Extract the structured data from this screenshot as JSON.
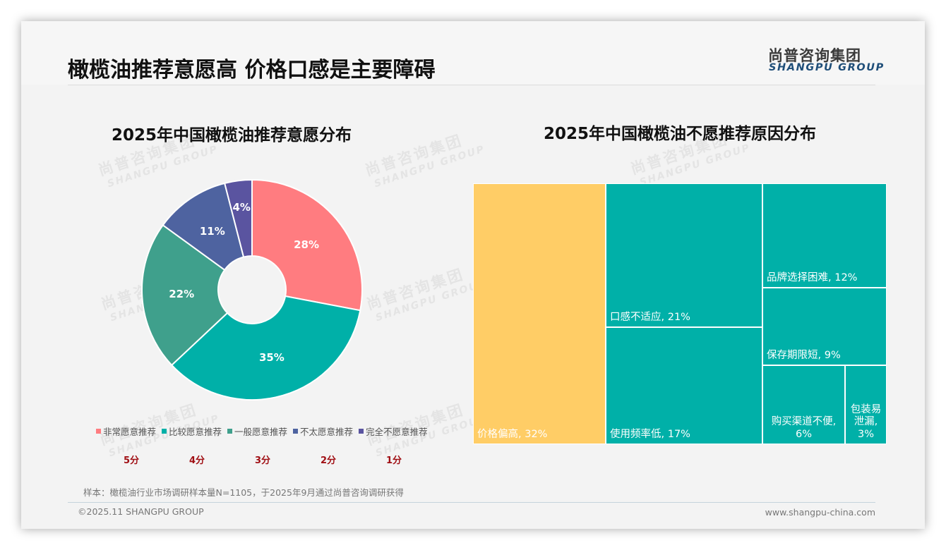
{
  "header": {
    "title": "橄榄油推荐意愿高 价格口感是主要障碍",
    "logo_cn": "尚普咨询集团",
    "logo_en": "SHANGPU GROUP"
  },
  "watermark": {
    "cn": "尚普咨询集团",
    "en": "SHANGPU GROUP"
  },
  "left_chart": {
    "title": "2025年中国橄榄油推荐意愿分布",
    "legend": [
      {
        "label": "非常愿意推荐",
        "color": "#ff7c80",
        "score": "5分"
      },
      {
        "label": "比较愿意推荐",
        "color": "#00b0a8",
        "score": "4分"
      },
      {
        "label": "一般愿意推荐",
        "color": "#3fa08c",
        "score": "3分"
      },
      {
        "label": "不太愿意推荐",
        "color": "#4e63a0",
        "score": "2分"
      },
      {
        "label": "完全不愿意推荐",
        "color": "#5a54a0",
        "score": "1分"
      }
    ]
  },
  "right_chart": {
    "title": "2025年中国橄榄油不愿推荐原因分布"
  },
  "chart_data": [
    {
      "type": "pie",
      "title": "2025年中国橄榄油推荐意愿分布",
      "donut": true,
      "categories": [
        "非常愿意推荐",
        "比较愿意推荐",
        "一般愿意推荐",
        "不太愿意推荐",
        "完全不愿意推荐"
      ],
      "scores": [
        "5分",
        "4分",
        "3分",
        "2分",
        "1分"
      ],
      "values": [
        28,
        35,
        22,
        11,
        4
      ],
      "labels": [
        "28%",
        "35%",
        "22%",
        "11%",
        "4%"
      ],
      "colors": [
        "#ff7c80",
        "#00b0a8",
        "#3fa08c",
        "#4e63a0",
        "#5a54a0"
      ],
      "legend_position": "bottom"
    },
    {
      "type": "treemap",
      "title": "2025年中国橄榄油不愿推荐原因分布",
      "categories": [
        "价格偏高",
        "口感不适应",
        "使用频率低",
        "品牌选择困难",
        "保存期限短",
        "购买渠道不便",
        "包装易泄漏"
      ],
      "values": [
        32,
        21,
        17,
        12,
        9,
        6,
        3
      ],
      "labels": [
        "价格偏高, 32%",
        "口感不适应, 21%",
        "使用频率低, 17%",
        "品牌选择困难, 12%",
        "保存期限短, 9%",
        "购买渠道不便, 6%",
        "包装易泄漏, 3%"
      ],
      "colors": [
        "#ffcd66",
        "#00b0a8",
        "#00b0a8",
        "#00b0a8",
        "#00b0a8",
        "#00b0a8",
        "#00b0a8"
      ]
    }
  ],
  "footer": {
    "sample_note": "样本：橄榄油行业市场调研样本量N=1105，于2025年9月通过尚普咨询调研获得",
    "copyright": "©2025.11 SHANGPU GROUP",
    "website": "www.shangpu-china.com"
  }
}
